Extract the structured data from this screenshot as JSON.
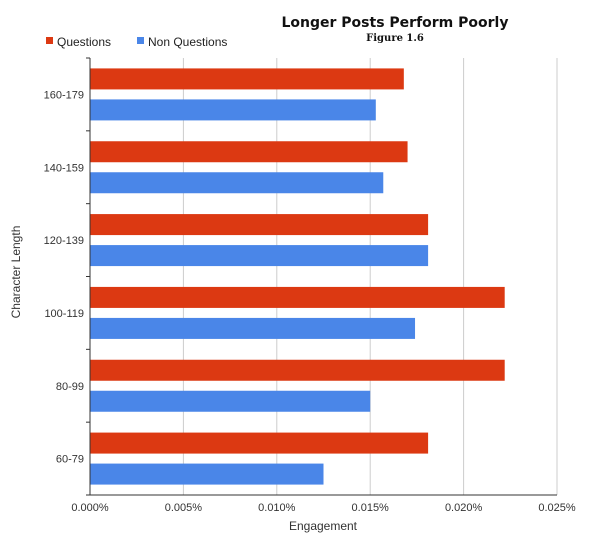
{
  "chart_data": {
    "type": "bar",
    "orientation": "horizontal",
    "title": "Longer Posts Perform Poorly",
    "subtitle": "Figure 1.6",
    "xlabel": "Engagement",
    "ylabel": "Character Length",
    "categories": [
      "160-179",
      "140-159",
      "120-139",
      "100-119",
      "80-99",
      "60-79"
    ],
    "series": [
      {
        "name": "Questions",
        "color": "#dc3912",
        "values": [
          0.0168,
          0.017,
          0.0181,
          0.0222,
          0.0222,
          0.0181
        ]
      },
      {
        "name": "Non Questions",
        "color": "#4a86e8",
        "values": [
          0.0153,
          0.0157,
          0.0181,
          0.0174,
          0.015,
          0.0125
        ]
      }
    ],
    "xlim": [
      0,
      0.025
    ],
    "xticks": [
      "0.000%",
      "0.005%",
      "0.010%",
      "0.015%",
      "0.020%",
      "0.025%"
    ],
    "grid": true,
    "legend_position": "top-left"
  }
}
